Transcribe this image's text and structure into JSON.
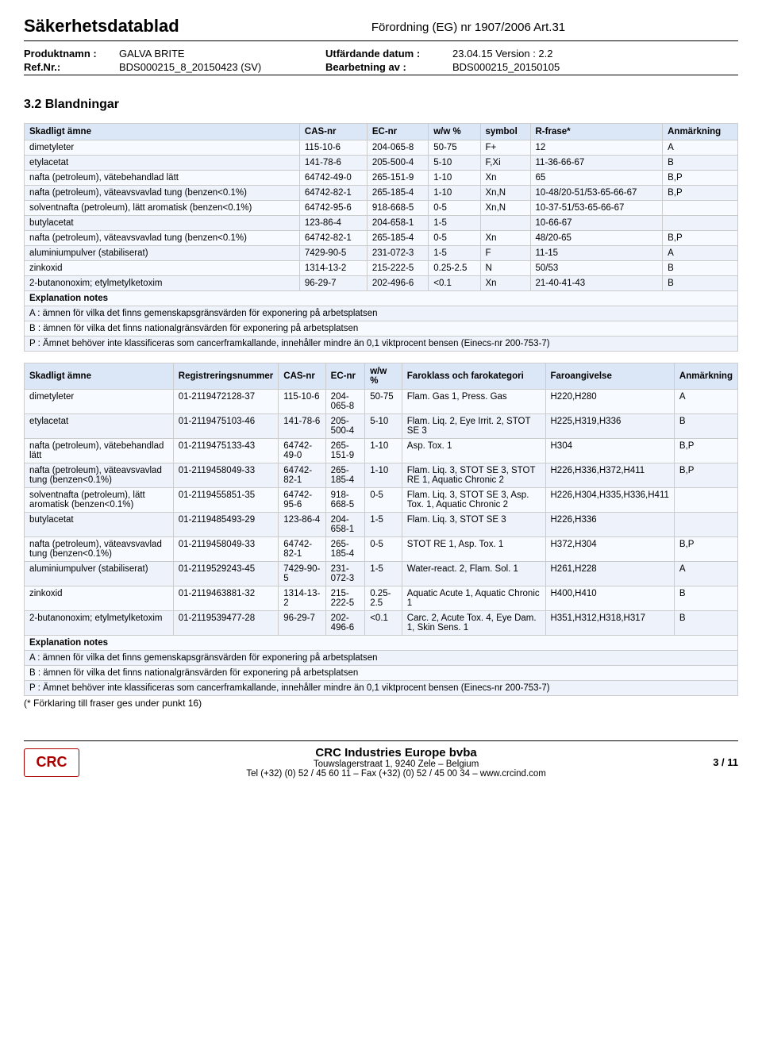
{
  "header": {
    "doc_title": "Säkerhetsdatablad",
    "regulation": "Förordning (EG) nr 1907/2006 Art.31",
    "product_label": "Produktnamn :",
    "product": "GALVA BRITE",
    "ref_label": "Ref.Nr.:",
    "ref": "BDS000215_8_20150423 (SV)",
    "issue_label": "Utfärdande datum :",
    "issue": "23.04.15 Version : 2.2",
    "rev_label": "Bearbetning av :",
    "rev": "BDS000215_20150105"
  },
  "section_title": "3.2 Blandningar",
  "table1": {
    "headers": [
      "Skadligt ämne",
      "CAS-nr",
      "EC-nr",
      "w/w %",
      "symbol",
      "R-frase*",
      "Anmärkning"
    ],
    "rows": [
      [
        "dimetyleter",
        "115-10-6",
        "204-065-8",
        "50-75",
        "F+",
        "12",
        "A"
      ],
      [
        "etylacetat",
        "141-78-6",
        "205-500-4",
        "5-10",
        "F,Xi",
        "11-36-66-67",
        "B"
      ],
      [
        "nafta (petroleum), vätebehandlad lätt",
        "64742-49-0",
        "265-151-9",
        "1-10",
        "Xn",
        "65",
        "B,P"
      ],
      [
        "nafta (petroleum), väteavsvavlad tung (benzen<0.1%)",
        "64742-82-1",
        "265-185-4",
        "1-10",
        "Xn,N",
        "10-48/20-51/53-65-66-67",
        "B,P"
      ],
      [
        "solventnafta (petroleum), lätt aromatisk (benzen<0.1%)",
        "64742-95-6",
        "918-668-5",
        "0-5",
        "Xn,N",
        "10-37-51/53-65-66-67",
        ""
      ],
      [
        "butylacetat",
        "123-86-4",
        "204-658-1",
        "1-5",
        "",
        "10-66-67",
        ""
      ],
      [
        "nafta (petroleum), väteavsvavlad tung (benzen<0.1%)",
        "64742-82-1",
        "265-185-4",
        "0-5",
        "Xn",
        "48/20-65",
        "B,P"
      ],
      [
        "aluminiumpulver (stabiliserat)",
        "7429-90-5",
        "231-072-3",
        "1-5",
        "F",
        "11-15",
        "A"
      ],
      [
        "zinkoxid",
        "1314-13-2",
        "215-222-5",
        "0.25-2.5",
        "N",
        "50/53",
        "B"
      ],
      [
        "2-butanonoxim; etylmetylketoxim",
        "96-29-7",
        "202-496-6",
        "<0.1",
        "Xn",
        "21-40-41-43",
        "B"
      ]
    ],
    "notes_title": "Explanation notes",
    "notes": [
      "A : ämnen för vilka det finns gemenskapsgränsvärden för exponering på arbetsplatsen",
      "B : ämnen för vilka det finns nationalgränsvärden för exponering på arbetsplatsen",
      "P : Ämnet behöver inte klassificeras som cancerframkallande, innehåller mindre än 0,1 viktprocent bensen (Einecs-nr 200-753-7)"
    ]
  },
  "table2": {
    "headers": [
      "Skadligt ämne",
      "Registreringsnummer",
      "CAS-nr",
      "EC-nr",
      "w/w %",
      "Faroklass och farokategori",
      "Faroangivelse",
      "Anmärkning"
    ],
    "rows": [
      [
        "dimetyleter",
        "01-2119472128-37",
        "115-10-6",
        "204-065-8",
        "50-75",
        "Flam. Gas 1, Press. Gas",
        "H220,H280",
        "A"
      ],
      [
        "etylacetat",
        "01-2119475103-46",
        "141-78-6",
        "205-500-4",
        "5-10",
        "Flam. Liq. 2, Eye Irrit. 2, STOT SE 3",
        "H225,H319,H336",
        "B"
      ],
      [
        "nafta (petroleum), vätebehandlad lätt",
        "01-2119475133-43",
        "64742-49-0",
        "265-151-9",
        "1-10",
        "Asp. Tox. 1",
        "H304",
        "B,P"
      ],
      [
        "nafta (petroleum), väteavsvavlad tung (benzen<0.1%)",
        "01-2119458049-33",
        "64742-82-1",
        "265-185-4",
        "1-10",
        "Flam. Liq. 3, STOT SE 3, STOT RE 1, Aquatic Chronic 2",
        "H226,H336,H372,H411",
        "B,P"
      ],
      [
        "solventnafta (petroleum), lätt aromatisk (benzen<0.1%)",
        "01-2119455851-35",
        "64742-95-6",
        "918-668-5",
        "0-5",
        "Flam. Liq. 3, STOT SE 3, Asp. Tox. 1, Aquatic Chronic 2",
        "H226,H304,H335,H336,H411",
        ""
      ],
      [
        "butylacetat",
        "01-2119485493-29",
        "123-86-4",
        "204-658-1",
        "1-5",
        "Flam. Liq. 3, STOT SE 3",
        "H226,H336",
        ""
      ],
      [
        "nafta (petroleum), väteavsvavlad tung (benzen<0.1%)",
        "01-2119458049-33",
        "64742-82-1",
        "265-185-4",
        "0-5",
        "STOT RE 1, Asp. Tox. 1",
        "H372,H304",
        "B,P"
      ],
      [
        "aluminiumpulver (stabiliserat)",
        "01-2119529243-45",
        "7429-90-5",
        "231-072-3",
        "1-5",
        "Water-react. 2, Flam. Sol. 1",
        "H261,H228",
        "A"
      ],
      [
        "zinkoxid",
        "01-2119463881-32",
        "1314-13-2",
        "215-222-5",
        "0.25-2.5",
        "Aquatic Acute 1, Aquatic Chronic 1",
        "H400,H410",
        "B"
      ],
      [
        "2-butanonoxim; etylmetylketoxim",
        "01-2119539477-28",
        "96-29-7",
        "202-496-6",
        "<0.1",
        "Carc. 2, Acute Tox. 4, Eye Dam. 1, Skin Sens. 1",
        "H351,H312,H318,H317",
        "B"
      ]
    ],
    "notes_title": "Explanation notes",
    "notes": [
      "A : ämnen för vilka det finns gemenskapsgränsvärden för exponering på arbetsplatsen",
      "B : ämnen för vilka det finns nationalgränsvärden för exponering på arbetsplatsen",
      "P : Ämnet behöver inte klassificeras som cancerframkallande, innehåller mindre än 0,1 viktprocent bensen (Einecs-nr 200-753-7)"
    ]
  },
  "footnote": "(* Förklaring till fraser ges under punkt 16)",
  "footer": {
    "logo": "CRC",
    "company": "CRC Industries Europe bvba",
    "addr": "Touwslagerstraat 1,  9240 Zele – Belgium",
    "tel": "Tel (+32) (0) 52 / 45 60 11 – Fax (+32) (0) 52 / 45 00 34 – www.crcind.com",
    "page": "3 / 11"
  }
}
